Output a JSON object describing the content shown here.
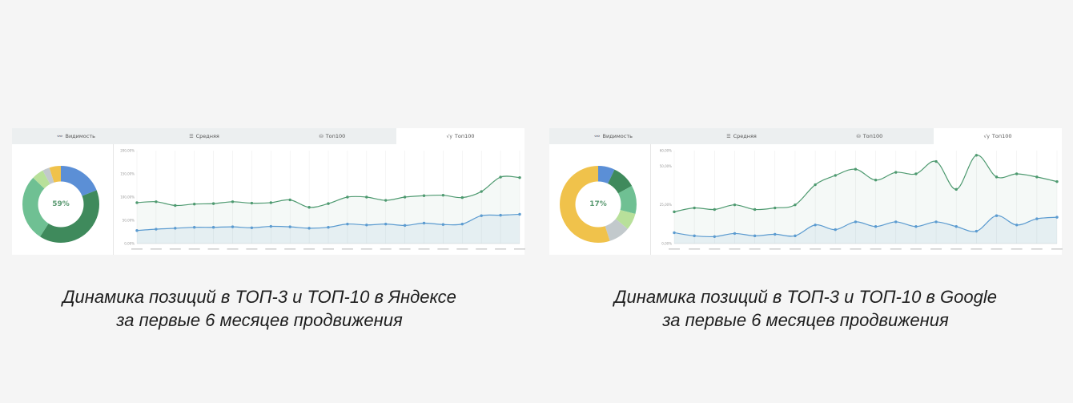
{
  "tabs": [
    {
      "label": "Видимость",
      "icon": "visibility-icon",
      "glyph": "👓"
    },
    {
      "label": "Средняя",
      "icon": "average-icon",
      "glyph": "☰"
    },
    {
      "label": "Топ100",
      "icon": "top100-icon",
      "glyph": "⛁"
    },
    {
      "label": "Топ100",
      "icon": "top100-chart-icon",
      "glyph": "√y"
    }
  ],
  "active_tab": 3,
  "colors": {
    "top3": "#4e9a70",
    "top10": "#5b9bd0",
    "donut": [
      "#5b8fd6",
      "#3f8a5c",
      "#6fc093",
      "#b8e09a",
      "#c2c9cc",
      "#f0c24b"
    ]
  },
  "captions": {
    "yandex": [
      "Динамика позиций в ТОП-3 и ТОП-10 в Яндексе",
      "за первые 6 месяцев продвижения"
    ],
    "google": [
      "Динамика позиций в ТОП-3 и ТОП-10 в Google",
      "за первые 6 месяцев продвижения"
    ]
  },
  "chart_data": [
    {
      "type": "line",
      "engine": "Yandex",
      "donut_label": "59%",
      "donut_slices": [
        19,
        40,
        28,
        5,
        3,
        5
      ],
      "y_ticks": [
        "0,00%",
        "50,00%",
        "100,00%",
        "150,00%",
        "200,00%"
      ],
      "ylim": [
        0,
        200
      ],
      "series": [
        {
          "values": [
            88,
            90,
            82,
            85,
            86,
            90,
            87,
            88,
            94,
            78,
            86,
            100,
            100,
            93,
            100,
            103,
            104,
            99,
            112,
            143,
            142
          ]
        },
        {
          "values": [
            28,
            31,
            33,
            35,
            35,
            36,
            34,
            37,
            36,
            33,
            35,
            42,
            40,
            42,
            39,
            44,
            41,
            42,
            60,
            61,
            63
          ]
        }
      ]
    },
    {
      "type": "line",
      "engine": "Google",
      "donut_label": "17%",
      "donut_slices": [
        7,
        10,
        12,
        7,
        9,
        55
      ],
      "y_ticks": [
        "0,00%",
        "25,00%",
        "50,00%",
        "60,00%"
      ],
      "ylim": [
        0,
        60
      ],
      "series": [
        {
          "values": [
            20.5,
            23,
            22,
            25,
            22,
            23,
            25,
            38,
            44,
            48,
            41,
            46,
            45,
            53,
            35,
            57,
            43,
            45,
            43,
            40
          ]
        },
        {
          "values": [
            7,
            5,
            4.5,
            6.5,
            5,
            6,
            5,
            12,
            9,
            14,
            11,
            14,
            11,
            14,
            11,
            8,
            18,
            12,
            16,
            17
          ]
        }
      ]
    }
  ]
}
